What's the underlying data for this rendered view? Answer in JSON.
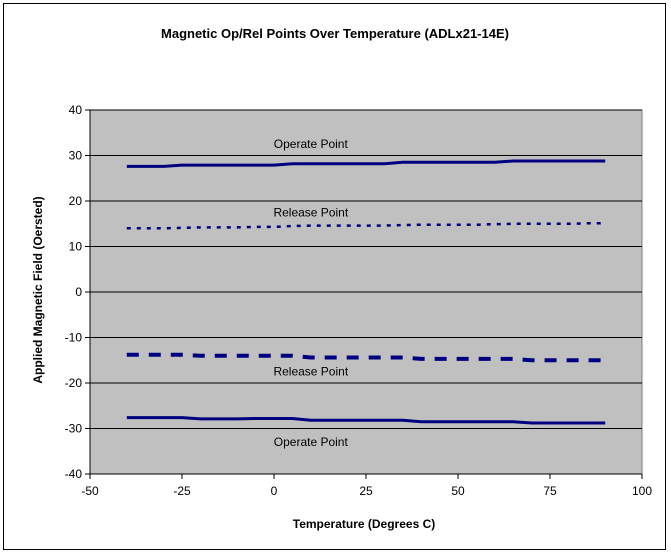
{
  "chart_data": {
    "type": "line",
    "title": "Magnetic Op/Rel Points Over Temperature (ADLx21-14E)",
    "xlabel": "Temperature (Degrees C)",
    "ylabel": "Applied Magnetic Field (Oersted)",
    "xlim": [
      -50,
      100
    ],
    "ylim": [
      -40,
      40
    ],
    "xticks": [
      -50,
      -25,
      0,
      25,
      50,
      75,
      100
    ],
    "yticks": [
      -40,
      -30,
      -20,
      -10,
      0,
      10,
      20,
      30,
      40
    ],
    "grid": true,
    "legend": "none",
    "plot_background": "#c0c0c0",
    "series": [
      {
        "style": "solid",
        "color": "#000080",
        "x": [
          -40,
          -35,
          -30,
          -25,
          -20,
          -15,
          -10,
          -5,
          0,
          5,
          10,
          15,
          20,
          25,
          30,
          35,
          40,
          45,
          50,
          55,
          60,
          65,
          70,
          75,
          80,
          85,
          90
        ],
        "y": [
          27.6,
          27.6,
          27.6,
          27.9,
          27.9,
          27.9,
          27.9,
          27.9,
          27.9,
          28.2,
          28.2,
          28.2,
          28.2,
          28.2,
          28.2,
          28.5,
          28.5,
          28.5,
          28.5,
          28.5,
          28.5,
          28.8,
          28.8,
          28.8,
          28.8,
          28.8,
          28.8
        ]
      },
      {
        "style": "dotted",
        "color": "#000080",
        "x": [
          -40,
          -35,
          -30,
          -25,
          -20,
          -15,
          -10,
          -5,
          0,
          5,
          10,
          15,
          20,
          25,
          30,
          35,
          40,
          45,
          50,
          55,
          60,
          65,
          70,
          75,
          80,
          85,
          90
        ],
        "y": [
          14.0,
          14.0,
          14.0,
          14.1,
          14.2,
          14.2,
          14.2,
          14.3,
          14.3,
          14.5,
          14.6,
          14.6,
          14.6,
          14.6,
          14.6,
          14.7,
          14.8,
          14.8,
          14.8,
          14.8,
          14.9,
          15.0,
          15.0,
          15.0,
          15.0,
          15.1,
          15.1
        ]
      },
      {
        "style": "dashed",
        "color": "#000080",
        "x": [
          -40,
          -35,
          -30,
          -25,
          -20,
          -15,
          -10,
          -5,
          0,
          5,
          10,
          15,
          20,
          25,
          30,
          35,
          40,
          45,
          50,
          55,
          60,
          65,
          70,
          75,
          80,
          85,
          90
        ],
        "y": [
          -13.8,
          -13.8,
          -13.8,
          -13.8,
          -14.0,
          -14.0,
          -14.0,
          -14.0,
          -14.0,
          -14.0,
          -14.4,
          -14.4,
          -14.4,
          -14.4,
          -14.4,
          -14.4,
          -14.7,
          -14.7,
          -14.7,
          -14.7,
          -14.7,
          -14.7,
          -15.0,
          -15.0,
          -15.0,
          -15.0,
          -15.0
        ]
      },
      {
        "style": "solid",
        "color": "#000080",
        "x": [
          -40,
          -35,
          -30,
          -25,
          -20,
          -15,
          -10,
          -5,
          0,
          5,
          10,
          15,
          20,
          25,
          30,
          35,
          40,
          45,
          50,
          55,
          60,
          65,
          70,
          75,
          80,
          85,
          90
        ],
        "y": [
          -27.6,
          -27.6,
          -27.6,
          -27.6,
          -27.9,
          -27.9,
          -27.9,
          -27.8,
          -27.8,
          -27.8,
          -28.2,
          -28.2,
          -28.2,
          -28.2,
          -28.2,
          -28.2,
          -28.5,
          -28.5,
          -28.5,
          -28.5,
          -28.5,
          -28.5,
          -28.8,
          -28.8,
          -28.8,
          -28.8,
          -28.8
        ]
      }
    ],
    "annotations": [
      {
        "text": "Operate Point",
        "x": 10,
        "y": 32.5
      },
      {
        "text": "Release Point",
        "x": 10,
        "y": 17.5
      },
      {
        "text": "Release Point",
        "x": 10,
        "y": -17.5
      },
      {
        "text": "Operate Point",
        "x": 10,
        "y": -33
      }
    ]
  }
}
